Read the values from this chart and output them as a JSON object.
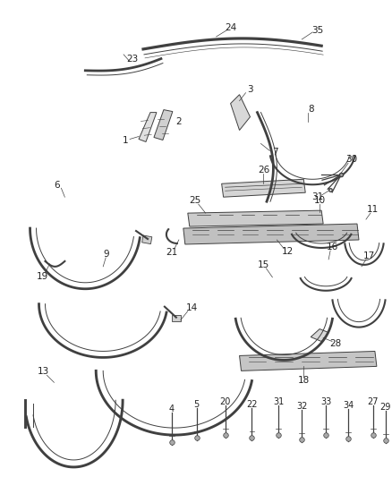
{
  "background_color": "#ffffff",
  "line_color": "#404040",
  "fig_width": 4.38,
  "fig_height": 5.33,
  "dpi": 100
}
